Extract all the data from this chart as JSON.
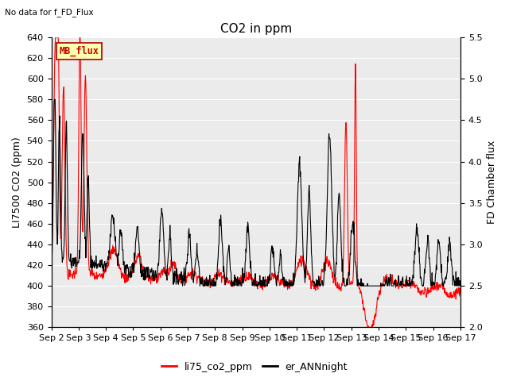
{
  "title": "CO2 in ppm",
  "top_left_text": "No data for f_FD_Flux",
  "legend_box_text": "MB_flux",
  "ylabel_left": "LI7500 CO2 (ppm)",
  "ylabel_right": "FD Chamber flux",
  "ylim_left": [
    360,
    640
  ],
  "ylim_right": [
    2.0,
    5.5
  ],
  "yticks_left": [
    360,
    380,
    400,
    420,
    440,
    460,
    480,
    500,
    520,
    540,
    560,
    580,
    600,
    620,
    640
  ],
  "yticks_right": [
    2.0,
    2.5,
    3.0,
    3.5,
    4.0,
    4.5,
    5.0,
    5.5
  ],
  "xtick_labels": [
    "Sep 2",
    "Sep 3",
    "Sep 4",
    "Sep 5",
    "Sep 6",
    "Sep 7",
    "Sep 8",
    "Sep 9",
    "Sep 10",
    "Sep 11",
    "Sep 12",
    "Sep 13",
    "Sep 14",
    "Sep 15",
    "Sep 16",
    "Sep 17"
  ],
  "line1_color": "#ff0000",
  "line1_label": "li75_co2_ppm",
  "line2_color": "#000000",
  "line2_label": "er_ANNnight",
  "plot_bg_color": "#ebebeb",
  "grid_color": "#ffffff",
  "title_fontsize": 11,
  "axis_fontsize": 9,
  "tick_fontsize": 8
}
